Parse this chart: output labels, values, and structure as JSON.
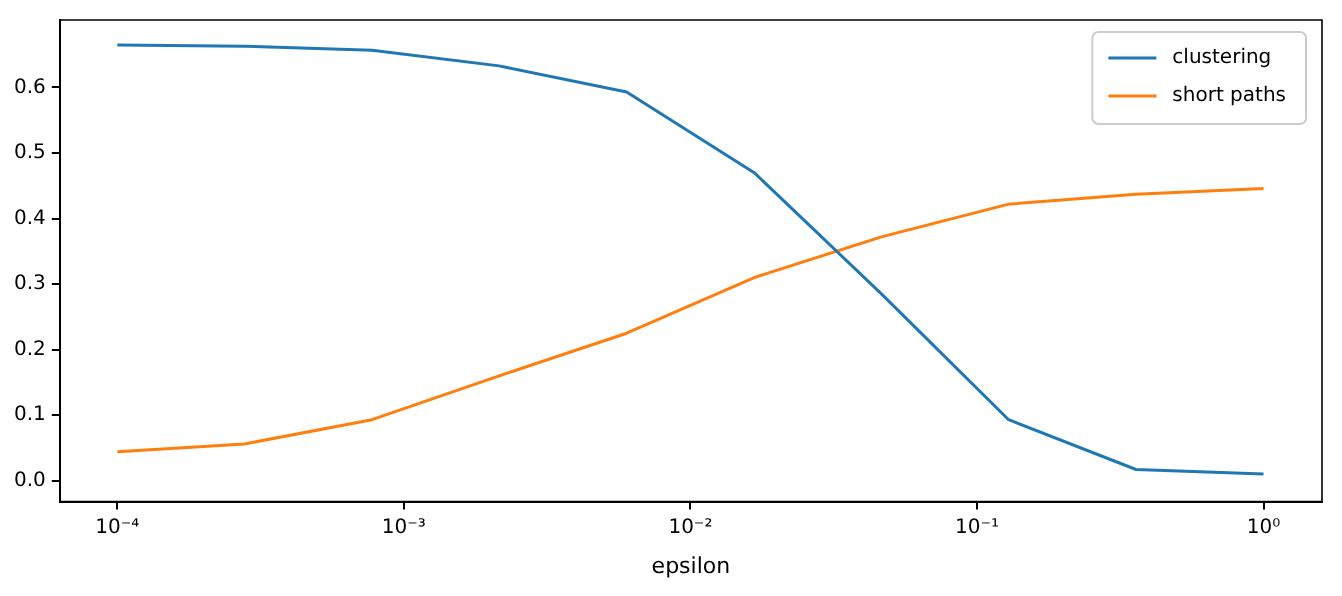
{
  "chart_data": {
    "type": "line",
    "xlabel": "epsilon",
    "log": "x",
    "grid": false,
    "legend": "top right",
    "marker": "none",
    "line_style": "solid",
    "x": [
      0.0001,
      0.000278,
      0.000774,
      0.00215,
      0.00599,
      0.0167,
      0.0464,
      0.129,
      0.359,
      1
    ],
    "xlim": [
      6.3e-05,
      1.6
    ],
    "xticks": [
      {
        "value": 0.0001,
        "label": "10⁻⁴"
      },
      {
        "value": 0.001,
        "label": "10⁻³"
      },
      {
        "value": 0.01,
        "label": "10⁻²"
      },
      {
        "value": 0.1,
        "label": "10⁻¹"
      },
      {
        "value": 1,
        "label": "10⁰"
      }
    ],
    "ylim": [
      -0.032,
      0.703
    ],
    "yticks": [
      {
        "value": 0,
        "label": "0.0"
      },
      {
        "value": 0.1,
        "label": "0.1"
      },
      {
        "value": 0.2,
        "label": "0.2"
      },
      {
        "value": 0.3,
        "label": "0.3"
      },
      {
        "value": 0.4,
        "label": "0.4"
      },
      {
        "value": 0.5,
        "label": "0.5"
      },
      {
        "value": 0.6,
        "label": "0.6"
      }
    ],
    "series": [
      {
        "name": "clustering",
        "color": "#1f77b4",
        "values": [
          0.665,
          0.663,
          0.657,
          0.633,
          0.593,
          0.47,
          0.285,
          0.093,
          0.017,
          0.01
        ]
      },
      {
        "name": "short paths",
        "color": "#ff7f0e",
        "values": [
          0.044,
          0.056,
          0.093,
          0.16,
          0.225,
          0.31,
          0.372,
          0.422,
          0.437,
          0.446
        ]
      }
    ]
  }
}
